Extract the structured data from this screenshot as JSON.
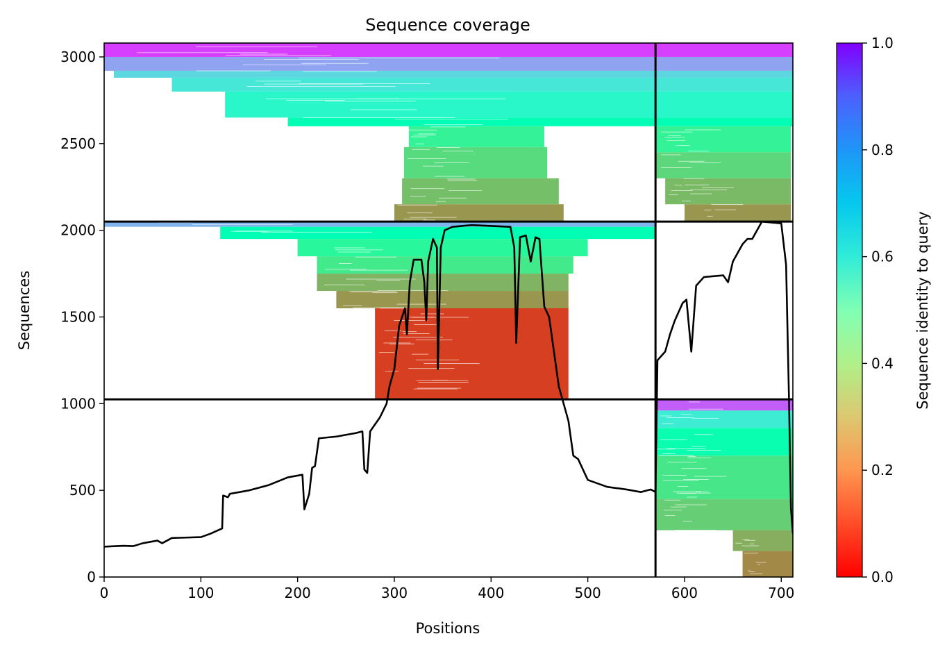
{
  "chart_data": {
    "type": "heatmap",
    "title": "Sequence coverage",
    "xlabel": "Positions",
    "ylabel": "Sequences",
    "colorbar_label": "Sequence identity to query",
    "xlim": [
      0,
      712
    ],
    "ylim": [
      0,
      3080
    ],
    "x_ticks": [
      0,
      100,
      200,
      300,
      400,
      500,
      600,
      700
    ],
    "y_ticks": [
      0,
      500,
      1000,
      1500,
      2000,
      2500,
      3000
    ],
    "colorbar_range": [
      0.0,
      1.0
    ],
    "colorbar_ticks": [
      "0.0",
      "0.2",
      "0.4",
      "0.6",
      "0.8",
      "1.0"
    ],
    "colormap": "rainbow_r",
    "grid": false,
    "segment_boundaries": {
      "x": [
        570
      ],
      "y": [
        1025,
        2050
      ]
    },
    "blocks": [
      {
        "name": "block-top",
        "y_range": [
          2050,
          3080
        ],
        "bands": [
          {
            "y": [
              3000,
              3080
            ],
            "x": [
              0,
              712
            ],
            "identity": 0.92
          },
          {
            "y": [
              2920,
              3000
            ],
            "x": [
              0,
              712
            ],
            "identity": 0.78
          },
          {
            "y": [
              2880,
              2920
            ],
            "x": [
              10,
              712
            ],
            "identity": 0.68
          },
          {
            "y": [
              2800,
              2880
            ],
            "x": [
              70,
              712
            ],
            "identity": 0.64
          },
          {
            "y": [
              2650,
              2800
            ],
            "x": [
              125,
              712
            ],
            "identity": 0.58
          },
          {
            "y": [
              2600,
              2650
            ],
            "x": [
              190,
              712
            ],
            "identity": 0.5
          },
          {
            "y": [
              2480,
              2600
            ],
            "x": [
              315,
              455
            ],
            "identity": 0.4
          },
          {
            "y": [
              2300,
              2480
            ],
            "x": [
              310,
              458
            ],
            "identity": 0.33
          },
          {
            "y": [
              2150,
              2300
            ],
            "x": [
              308,
              470
            ],
            "identity": 0.27
          },
          {
            "y": [
              2050,
              2150
            ],
            "x": [
              300,
              475
            ],
            "identity": 0.2
          },
          {
            "y": [
              2450,
              2600
            ],
            "x": [
              570,
              710
            ],
            "identity": 0.4
          },
          {
            "y": [
              2300,
              2450
            ],
            "x": [
              570,
              710
            ],
            "identity": 0.32
          },
          {
            "y": [
              2150,
              2300
            ],
            "x": [
              580,
              710
            ],
            "identity": 0.26
          },
          {
            "y": [
              2050,
              2150
            ],
            "x": [
              600,
              710
            ],
            "identity": 0.2
          }
        ]
      },
      {
        "name": "block-middle",
        "y_range": [
          1025,
          2050
        ],
        "bands": [
          {
            "y": [
              2020,
              2050
            ],
            "x": [
              0,
              570
            ],
            "identity": 0.75
          },
          {
            "y": [
              1950,
              2020
            ],
            "x": [
              120,
              570
            ],
            "identity": 0.5
          },
          {
            "y": [
              1850,
              1950
            ],
            "x": [
              200,
              500
            ],
            "identity": 0.42
          },
          {
            "y": [
              1750,
              1850
            ],
            "x": [
              220,
              485
            ],
            "identity": 0.37
          },
          {
            "y": [
              1650,
              1750
            ],
            "x": [
              220,
              480
            ],
            "identity": 0.25
          },
          {
            "y": [
              1550,
              1650
            ],
            "x": [
              240,
              480
            ],
            "identity": 0.2
          },
          {
            "y": [
              1025,
              1550
            ],
            "x": [
              280,
              480
            ],
            "identity": 0.08
          }
        ]
      },
      {
        "name": "block-bottom",
        "y_range": [
          0,
          1025
        ],
        "bands": [
          {
            "y": [
              960,
              1025
            ],
            "x": [
              570,
              712
            ],
            "identity": 0.88
          },
          {
            "y": [
              860,
              960
            ],
            "x": [
              570,
              712
            ],
            "identity": 0.62
          },
          {
            "y": [
              700,
              860
            ],
            "x": [
              570,
              712
            ],
            "identity": 0.48
          },
          {
            "y": [
              450,
              700
            ],
            "x": [
              570,
              712
            ],
            "identity": 0.36
          },
          {
            "y": [
              270,
              450
            ],
            "x": [
              570,
              712
            ],
            "identity": 0.3
          },
          {
            "y": [
              150,
              270
            ],
            "x": [
              650,
              712
            ],
            "identity": 0.24
          },
          {
            "y": [
              0,
              150
            ],
            "x": [
              660,
              712
            ],
            "identity": 0.18
          }
        ]
      }
    ],
    "coverage_line": {
      "name": "coverage",
      "points": [
        [
          0,
          175
        ],
        [
          20,
          180
        ],
        [
          30,
          178
        ],
        [
          40,
          195
        ],
        [
          55,
          210
        ],
        [
          60,
          195
        ],
        [
          70,
          225
        ],
        [
          100,
          230
        ],
        [
          110,
          250
        ],
        [
          118,
          270
        ],
        [
          122,
          280
        ],
        [
          123,
          470
        ],
        [
          128,
          460
        ],
        [
          130,
          480
        ],
        [
          150,
          500
        ],
        [
          170,
          530
        ],
        [
          190,
          575
        ],
        [
          205,
          590
        ],
        [
          207,
          390
        ],
        [
          212,
          480
        ],
        [
          215,
          630
        ],
        [
          218,
          640
        ],
        [
          222,
          800
        ],
        [
          240,
          810
        ],
        [
          260,
          830
        ],
        [
          267,
          840
        ],
        [
          269,
          620
        ],
        [
          272,
          600
        ],
        [
          275,
          840
        ],
        [
          285,
          920
        ],
        [
          292,
          1000
        ],
        [
          295,
          1100
        ],
        [
          300,
          1200
        ],
        [
          305,
          1450
        ],
        [
          308,
          1500
        ],
        [
          311,
          1550
        ],
        [
          313,
          1400
        ],
        [
          316,
          1700
        ],
        [
          320,
          1830
        ],
        [
          328,
          1830
        ],
        [
          331,
          1700
        ],
        [
          333,
          1480
        ],
        [
          335,
          1820
        ],
        [
          340,
          1950
        ],
        [
          344,
          1900
        ],
        [
          345,
          1200
        ],
        [
          348,
          1900
        ],
        [
          352,
          2000
        ],
        [
          360,
          2020
        ],
        [
          380,
          2030
        ],
        [
          420,
          2020
        ],
        [
          424,
          1900
        ],
        [
          426,
          1350
        ],
        [
          430,
          1960
        ],
        [
          436,
          1970
        ],
        [
          441,
          1820
        ],
        [
          446,
          1960
        ],
        [
          450,
          1950
        ],
        [
          455,
          1560
        ],
        [
          460,
          1500
        ],
        [
          465,
          1300
        ],
        [
          470,
          1100
        ],
        [
          475,
          1000
        ],
        [
          480,
          900
        ],
        [
          485,
          700
        ],
        [
          490,
          680
        ],
        [
          500,
          560
        ],
        [
          520,
          520
        ],
        [
          540,
          505
        ],
        [
          555,
          490
        ],
        [
          565,
          505
        ],
        [
          570,
          490
        ],
        [
          572,
          1250
        ],
        [
          580,
          1300
        ],
        [
          585,
          1400
        ],
        [
          590,
          1480
        ],
        [
          598,
          1580
        ],
        [
          602,
          1600
        ],
        [
          607,
          1300
        ],
        [
          612,
          1680
        ],
        [
          620,
          1730
        ],
        [
          640,
          1740
        ],
        [
          645,
          1700
        ],
        [
          650,
          1820
        ],
        [
          660,
          1920
        ],
        [
          665,
          1950
        ],
        [
          670,
          1950
        ],
        [
          675,
          2000
        ],
        [
          680,
          2050
        ],
        [
          700,
          2040
        ],
        [
          705,
          1800
        ],
        [
          708,
          1025
        ],
        [
          710,
          400
        ],
        [
          712,
          250
        ]
      ]
    }
  }
}
